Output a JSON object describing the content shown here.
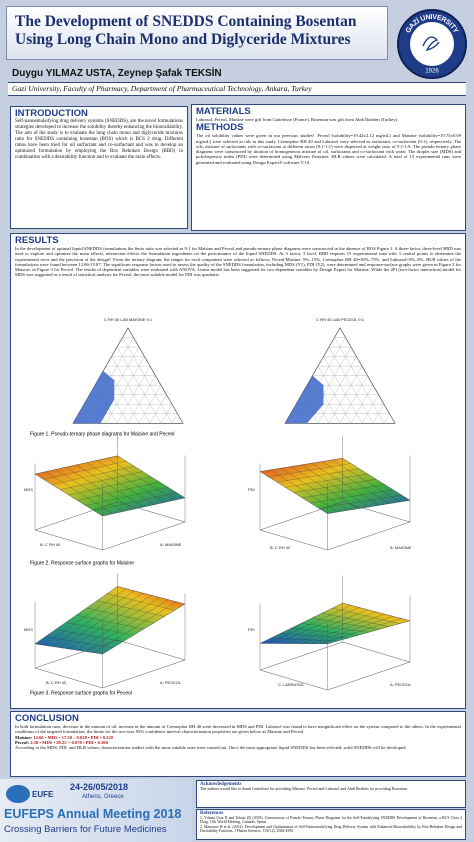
{
  "header": {
    "title": "The Development of SNEDDS Containing Bosentan Using Long Chain Mono and Diglyceride Mixtures",
    "authors": "Duygu YILMAZ USTA, Zeynep Şafak TEKSİN",
    "affiliation": "Gazi University, Faculty of Pharmacy, Department of Pharmaceutical Technology, Ankara, Turkey",
    "logo_text": "GAZİ UNIVERSITY",
    "logo_year": "1926"
  },
  "introduction": {
    "title": "INTRODUCTION",
    "text": "Self-nanoemulsifying drug delivery systems (SNEDDS), are the novel formulations strategies developed to increase the solubility thereby enhancing the bioavailability. The aim of the study is to evaluate the long chain mono and diglyceride mixtures ratio for SNEDDS containing bosentan (BOS) which is BCS 2 drug. Different ratios have been tried for oil surfactant and co-surfactant and was to develop an optimized formulation by employing the Box Behnken Design (BBD) in combination with a desirability function and to evaluate the main effects."
  },
  "materials": {
    "title": "MATERIALS",
    "text": "Labrasol, Peceol, Maisine were gift from Gattefosse (France). Bosentan was gift from Abdi İbrahim (Turkey)."
  },
  "methods": {
    "title": "METHODS",
    "text": "The oil solubility values were given in our previous studies¹. Peceol (solubility=19.42±2.12 mg/mL) and Maisine (solubility=19.75±0.69 mg/mL) were selected as oils in this study. Cremophor RH 40 and Labrasol were selected as surfactant, co-surfactant (9:1), respectively. The oils, mixture of surfactants with co-surfactant at different ratios (9:1-1:1) were dispersed at weight ratio of 9:1-1:9. The pseudo-ternary phase diagrams were constructed by titration of homogeneous mixture of oil, surfactants and co-surfactant with water. The droplet size (MDS) and polydispersity index (PDI) were determined using Malvern Zetasizer. HLB values were calculated. A total of 15 experimental runs were generated and evaluated using Design Expert® software V.10."
  },
  "results": {
    "title": "RESULTS",
    "text": "In the development of optimal liquid SNEDDS formulations the Smix ratio was selected as 9:1 for Maisine and Peceol and pseudo-ternary phase diagrams were constructed in the absence of BOS Figure 1. A three-factor, three-level BBD was used to explore and optimize the main effects, interaction effects the formulation ingredients on the performance of the liquid SNEDDS. At 3 factor, 3 level, BBD requires 15 experimental runs with 3 central points to determine the experimental error and the precision of the design². From the ternary diagram, the ranges for each component were selected as follows; Peceol/Maisine: 9%–15%, Cremophor RH 40=30%–75%, and Labrasol=5%–8%. HLB values of the formulations were found between 12.86-15.87. The significant response factors used to assess the quality of the SNEDDS formulation, including MDS (Y1), PDI (Y2), were determined and response-surface graphs were given in Figure 2 for Maisine, in Figure 3 for Peceol. The results of dependent variables were evaluated with ANOVA. Linear model has been suggested for two dependent variables by Design Expert for Maisine. While the 2FI (two-factor interaction) model for MDS was suggested as a result of statistical analysis for Peceol, the most suitable model for PDI was quadratic.",
    "figure1": {
      "left_title": "C RH 40 LAB MAISINE 9:1",
      "right_title": "C RH 40 LAB PECEOL 9:1",
      "caption": "Figure 1. Pseudo-ternary phase diagrams for Maisine and Peceol"
    },
    "figure2": {
      "left_z": "MDS",
      "left_b": "B: C RH 40",
      "left_a": "A: MAISINE",
      "right_z": "PDI",
      "right_b": "B: C RH 40",
      "right_a": "A: MAISINE",
      "caption": "Figure 2. Response surface graphs for Maisine"
    },
    "figure3": {
      "left_z": "MDS",
      "left_b": "B: C RH 40",
      "left_a": "A: PECEOL",
      "right_z": "PDI",
      "right_b": "C: LABRASOL",
      "right_a": "A: PECEOL",
      "caption": "Figure 3. Response surface graphs for Peceol"
    }
  },
  "conclusion": {
    "title": "CONCLUSION",
    "text": "In both formulation runs, decrease in the amount of oil, increase in the amount of Cremophor RH 40 were decreased in MDS and PDI. Labrasol was found to have insignificant effect on the system compared to the others. In the experimental conditions of the targeted formulation, the limits for the two-way 95% confidence interval characterization properties are given below as Maisine and Peceol.",
    "maisine_label": "Maisine:",
    "maisine_limits": "12.60 • MDS • 17.50 – 0.028 • PDI • 0.220",
    "peceol_label": "Peceol:",
    "peceol_limits": "2.58 • MDS • 20.25 + 0.078 • PDI • 0.300",
    "closing": "According to the MDS, PDI, and HLB values, characterization studies with the most suitable ones were carried out. Once the most appropriate liquid SNEDDS has been selected, solid SNEDDS will be developed."
  },
  "footer": {
    "org": "EUFEPS",
    "dates": "24-26/05/2018",
    "place": "Athens, Greece",
    "meeting": "EUFEPS Annual Meeting 2018",
    "slogan": "Crossing Barriers for Future Medicines"
  },
  "acknowledgements": {
    "title": "Acknowledgements",
    "text": "The authors would like to thank Gattefossé for providing Maisine, Peceol and Labrasol and Abdi İbrahim for providing Bosentan."
  },
  "references": {
    "title": "References",
    "items": [
      "1. Yılmaz Usta D and Teksin ZŞ (2018). Construction of Pseudo-Ternary Phase Diagrams for the Self-Emulsifying SNEDDS Development of Bosentan, a BCS Class 2 Drug. 11th World Meeting, Granada, Spain.",
      "2. Mansoori H et al. (2012). Development and Optimization of Self-Nanoemulsifying Drug Delivery System with Enhanced Bioavailability by Box-Behnken Design and Desirability Function. J Pharm Sciences. 101(12), 4584-4595."
    ]
  }
}
